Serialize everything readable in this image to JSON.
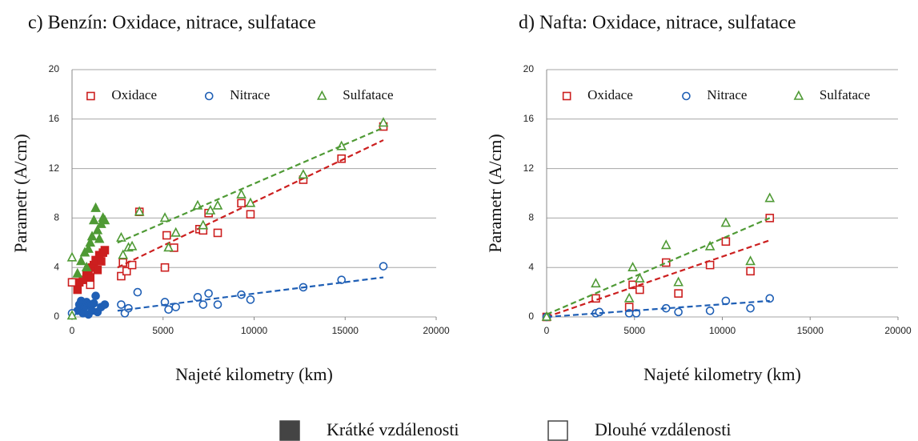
{
  "chart_data": [
    {
      "type": "scatter",
      "title": "c)  Benzín: Oxidace, nitrace, sulfatace",
      "x_label": "Najeté kilometry (km)",
      "y_label": "Parametr (A/cm)",
      "xlim": [
        0,
        20000
      ],
      "xticks": [
        0,
        5000,
        10000,
        15000,
        20000
      ],
      "ylim": [
        0,
        20
      ],
      "yticks": [
        0,
        4,
        8,
        12,
        16,
        20
      ],
      "grid": true,
      "series": [
        {
          "name": "Oxidace",
          "color": "#cc1f1f",
          "marker": "square",
          "x": [
            300,
            400,
            600,
            800,
            900,
            1000,
            1100,
            1200,
            1300,
            1400,
            1500,
            1600,
            1700,
            1800,
            0,
            1000,
            2700,
            2800,
            3000,
            3300,
            3700,
            5100,
            5200,
            5600,
            7000,
            7200,
            7500,
            8000,
            9300,
            9800,
            12700,
            14800,
            17100
          ],
          "values": [
            2.2,
            2.8,
            3.0,
            3.5,
            3.8,
            3.2,
            4.0,
            4.2,
            4.6,
            3.8,
            5.0,
            4.5,
            5.2,
            5.4,
            2.8,
            2.6,
            3.3,
            4.4,
            3.7,
            4.2,
            8.5,
            4.0,
            6.6,
            5.6,
            7.1,
            7.0,
            8.4,
            6.8,
            9.2,
            8.3,
            11.1,
            12.8,
            15.4
          ],
          "filled": [
            true,
            true,
            true,
            true,
            true,
            true,
            true,
            true,
            true,
            true,
            true,
            true,
            true,
            true,
            false,
            false,
            false,
            false,
            false,
            false,
            false,
            false,
            false,
            false,
            false,
            false,
            false,
            false,
            false,
            false,
            false,
            false,
            false
          ],
          "trend": {
            "x": [
              2500,
              17100
            ],
            "values": [
              4.0,
              14.3
            ]
          }
        },
        {
          "name": "Nitrace",
          "color": "#1f5fb5",
          "marker": "circle",
          "x": [
            300,
            400,
            500,
            600,
            700,
            800,
            900,
            1000,
            1100,
            1200,
            1300,
            1400,
            1600,
            1800,
            0,
            2700,
            2900,
            3100,
            3600,
            5100,
            5300,
            5700,
            6900,
            7200,
            7500,
            8000,
            9300,
            9800,
            12700,
            14800,
            17100
          ],
          "values": [
            0.5,
            1.0,
            1.3,
            0.3,
            0.8,
            1.2,
            0.2,
            1.0,
            0.5,
            1.1,
            1.7,
            0.4,
            0.8,
            1.0,
            0.3,
            1.0,
            0.3,
            0.7,
            2.0,
            1.2,
            0.6,
            0.8,
            1.6,
            1.0,
            1.9,
            1.0,
            1.8,
            1.4,
            2.4,
            3.0,
            4.1
          ],
          "filled": [
            true,
            true,
            true,
            true,
            true,
            true,
            true,
            true,
            true,
            true,
            true,
            true,
            true,
            true,
            false,
            false,
            false,
            false,
            false,
            false,
            false,
            false,
            false,
            false,
            false,
            false,
            false,
            false,
            false,
            false,
            false
          ],
          "trend": {
            "x": [
              2500,
              17100
            ],
            "values": [
              0.5,
              3.2
            ]
          }
        },
        {
          "name": "Sulfatace",
          "color": "#4f9a35",
          "marker": "triangle",
          "x": [
            300,
            500,
            700,
            800,
            900,
            1000,
            1100,
            1200,
            1300,
            1400,
            1500,
            1600,
            1700,
            1800,
            0,
            0,
            2700,
            2800,
            3100,
            3300,
            3700,
            5100,
            5300,
            5700,
            6900,
            7200,
            7600,
            8000,
            9300,
            9800,
            12700,
            14800,
            17100
          ],
          "values": [
            3.5,
            4.5,
            5.2,
            4.0,
            5.5,
            6.0,
            6.5,
            7.8,
            8.8,
            7.0,
            6.3,
            7.5,
            8.0,
            7.8,
            4.8,
            0.1,
            6.4,
            5.0,
            5.6,
            5.7,
            8.5,
            8.0,
            5.6,
            6.8,
            9.0,
            7.4,
            8.6,
            9.0,
            9.9,
            9.2,
            11.5,
            13.8,
            15.7
          ],
          "filled": [
            true,
            true,
            true,
            true,
            true,
            true,
            true,
            true,
            true,
            true,
            true,
            true,
            true,
            true,
            false,
            false,
            false,
            false,
            false,
            false,
            false,
            false,
            false,
            false,
            false,
            false,
            false,
            false,
            false,
            false,
            false,
            false,
            false
          ],
          "trend": {
            "x": [
              2500,
              17100
            ],
            "values": [
              6.0,
              15.3
            ]
          }
        }
      ]
    },
    {
      "type": "scatter",
      "title": "d)  Nafta: Oxidace, nitrace, sulfatace",
      "x_label": "Najeté kilometry (km)",
      "y_label": "Parametr (A/cm)",
      "xlim": [
        0,
        20000
      ],
      "xticks": [
        0,
        5000,
        10000,
        15000,
        20000
      ],
      "ylim": [
        0,
        20
      ],
      "yticks": [
        0,
        4,
        8,
        12,
        16,
        20
      ],
      "grid": true,
      "series": [
        {
          "name": "Oxidace",
          "color": "#cc1f1f",
          "marker": "square",
          "x": [
            0,
            2800,
            4700,
            4900,
            5300,
            6800,
            7500,
            9300,
            10200,
            11600,
            12700
          ],
          "values": [
            0,
            1.5,
            0.8,
            2.6,
            2.2,
            4.4,
            1.9,
            4.2,
            6.1,
            3.7,
            8.0
          ],
          "filled": [
            false,
            false,
            false,
            false,
            false,
            false,
            false,
            false,
            false,
            false,
            false
          ],
          "trend": {
            "x": [
              0,
              12700
            ],
            "values": [
              0,
              6.2
            ]
          }
        },
        {
          "name": "Nitrace",
          "color": "#1f5fb5",
          "marker": "circle",
          "x": [
            0,
            2800,
            3000,
            4700,
            5100,
            6800,
            7500,
            9300,
            10200,
            11600,
            12700
          ],
          "values": [
            0,
            0.3,
            0.4,
            0.3,
            0.3,
            0.7,
            0.4,
            0.5,
            1.3,
            0.7,
            1.5
          ],
          "filled": [
            false,
            false,
            false,
            false,
            false,
            false,
            false,
            false,
            false,
            false,
            false
          ],
          "trend": {
            "x": [
              0,
              12700
            ],
            "values": [
              0,
              1.3
            ]
          }
        },
        {
          "name": "Sulfatace",
          "color": "#4f9a35",
          "marker": "triangle",
          "x": [
            0,
            2800,
            4700,
            4900,
            5300,
            6800,
            7500,
            9300,
            10200,
            11600,
            12700
          ],
          "values": [
            0,
            2.7,
            1.5,
            4.0,
            3.1,
            5.8,
            2.8,
            5.7,
            7.6,
            4.5,
            9.6
          ],
          "filled": [
            false,
            false,
            false,
            false,
            false,
            false,
            false,
            false,
            false,
            false,
            false
          ],
          "trend": {
            "x": [
              0,
              12700
            ],
            "values": [
              0.2,
              8.0
            ]
          }
        }
      ]
    }
  ],
  "figure_legend": [
    {
      "label": "Krátké vzdálenosti",
      "filled": true
    },
    {
      "label": "Dlouhé vzdálenosti",
      "filled": false
    }
  ]
}
